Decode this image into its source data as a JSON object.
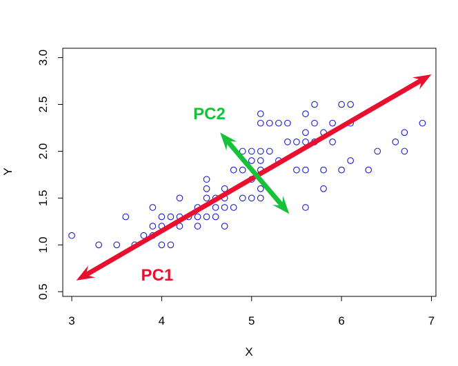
{
  "chart_data": {
    "type": "scatter",
    "title": "",
    "xlabel": "X",
    "ylabel": "Y",
    "xlim": [
      2.9,
      7.05
    ],
    "ylim": [
      0.45,
      3.1
    ],
    "xticks": [
      "3",
      "4",
      "5",
      "6",
      "7"
    ],
    "yticks": [
      "0.5",
      "1.0",
      "1.5",
      "2.0",
      "2.5",
      "3.0"
    ],
    "grid": false,
    "legend": "none",
    "point_color": "#1a1acc",
    "points": [
      [
        3.0,
        1.1
      ],
      [
        3.3,
        1.0
      ],
      [
        3.5,
        1.0
      ],
      [
        3.6,
        1.3
      ],
      [
        3.7,
        1.0
      ],
      [
        3.8,
        1.1
      ],
      [
        3.9,
        1.1
      ],
      [
        3.9,
        1.2
      ],
      [
        3.9,
        1.4
      ],
      [
        4.0,
        1.0
      ],
      [
        4.0,
        1.2
      ],
      [
        4.0,
        1.3
      ],
      [
        4.1,
        1.0
      ],
      [
        4.1,
        1.3
      ],
      [
        4.2,
        1.2
      ],
      [
        4.2,
        1.3
      ],
      [
        4.2,
        1.5
      ],
      [
        4.3,
        1.3
      ],
      [
        4.4,
        1.2
      ],
      [
        4.4,
        1.3
      ],
      [
        4.4,
        1.4
      ],
      [
        4.5,
        1.3
      ],
      [
        4.5,
        1.5
      ],
      [
        4.5,
        1.6
      ],
      [
        4.5,
        1.7
      ],
      [
        4.6,
        1.3
      ],
      [
        4.6,
        1.4
      ],
      [
        4.6,
        1.5
      ],
      [
        4.7,
        1.2
      ],
      [
        4.7,
        1.4
      ],
      [
        4.7,
        1.5
      ],
      [
        4.7,
        1.6
      ],
      [
        4.8,
        1.4
      ],
      [
        4.8,
        1.8
      ],
      [
        4.9,
        1.5
      ],
      [
        4.9,
        1.8
      ],
      [
        4.9,
        2.0
      ],
      [
        5.0,
        1.5
      ],
      [
        5.0,
        1.7
      ],
      [
        5.0,
        1.9
      ],
      [
        5.0,
        2.0
      ],
      [
        5.1,
        1.5
      ],
      [
        5.1,
        1.6
      ],
      [
        5.1,
        1.8
      ],
      [
        5.1,
        1.9
      ],
      [
        5.1,
        2.0
      ],
      [
        5.1,
        2.3
      ],
      [
        5.1,
        2.4
      ],
      [
        5.2,
        2.0
      ],
      [
        5.2,
        2.3
      ],
      [
        5.3,
        1.9
      ],
      [
        5.3,
        2.3
      ],
      [
        5.4,
        2.1
      ],
      [
        5.4,
        2.3
      ],
      [
        5.5,
        1.8
      ],
      [
        5.5,
        2.1
      ],
      [
        5.6,
        1.4
      ],
      [
        5.6,
        1.8
      ],
      [
        5.6,
        2.1
      ],
      [
        5.6,
        2.2
      ],
      [
        5.6,
        2.4
      ],
      [
        5.7,
        2.1
      ],
      [
        5.7,
        2.3
      ],
      [
        5.7,
        2.5
      ],
      [
        5.8,
        1.6
      ],
      [
        5.8,
        1.8
      ],
      [
        5.8,
        2.2
      ],
      [
        5.9,
        2.1
      ],
      [
        5.9,
        2.3
      ],
      [
        6.0,
        1.8
      ],
      [
        6.0,
        2.5
      ],
      [
        6.1,
        1.9
      ],
      [
        6.1,
        2.3
      ],
      [
        6.1,
        2.5
      ],
      [
        6.3,
        1.8
      ],
      [
        6.4,
        2.0
      ],
      [
        6.6,
        2.1
      ],
      [
        6.7,
        2.0
      ],
      [
        6.7,
        2.2
      ],
      [
        6.9,
        2.3
      ]
    ],
    "annotations": [
      {
        "label": "PC1",
        "color": "#e8102e",
        "from": [
          3.05,
          0.62
        ],
        "to": [
          7.0,
          2.82
        ],
        "both_heads": true,
        "label_at": [
          3.95,
          0.62
        ]
      },
      {
        "label": "PC2",
        "color": "#17c23a",
        "from": [
          4.65,
          2.2
        ],
        "to": [
          5.42,
          1.33
        ],
        "both_heads": true,
        "label_at": [
          4.53,
          2.34
        ]
      }
    ]
  }
}
